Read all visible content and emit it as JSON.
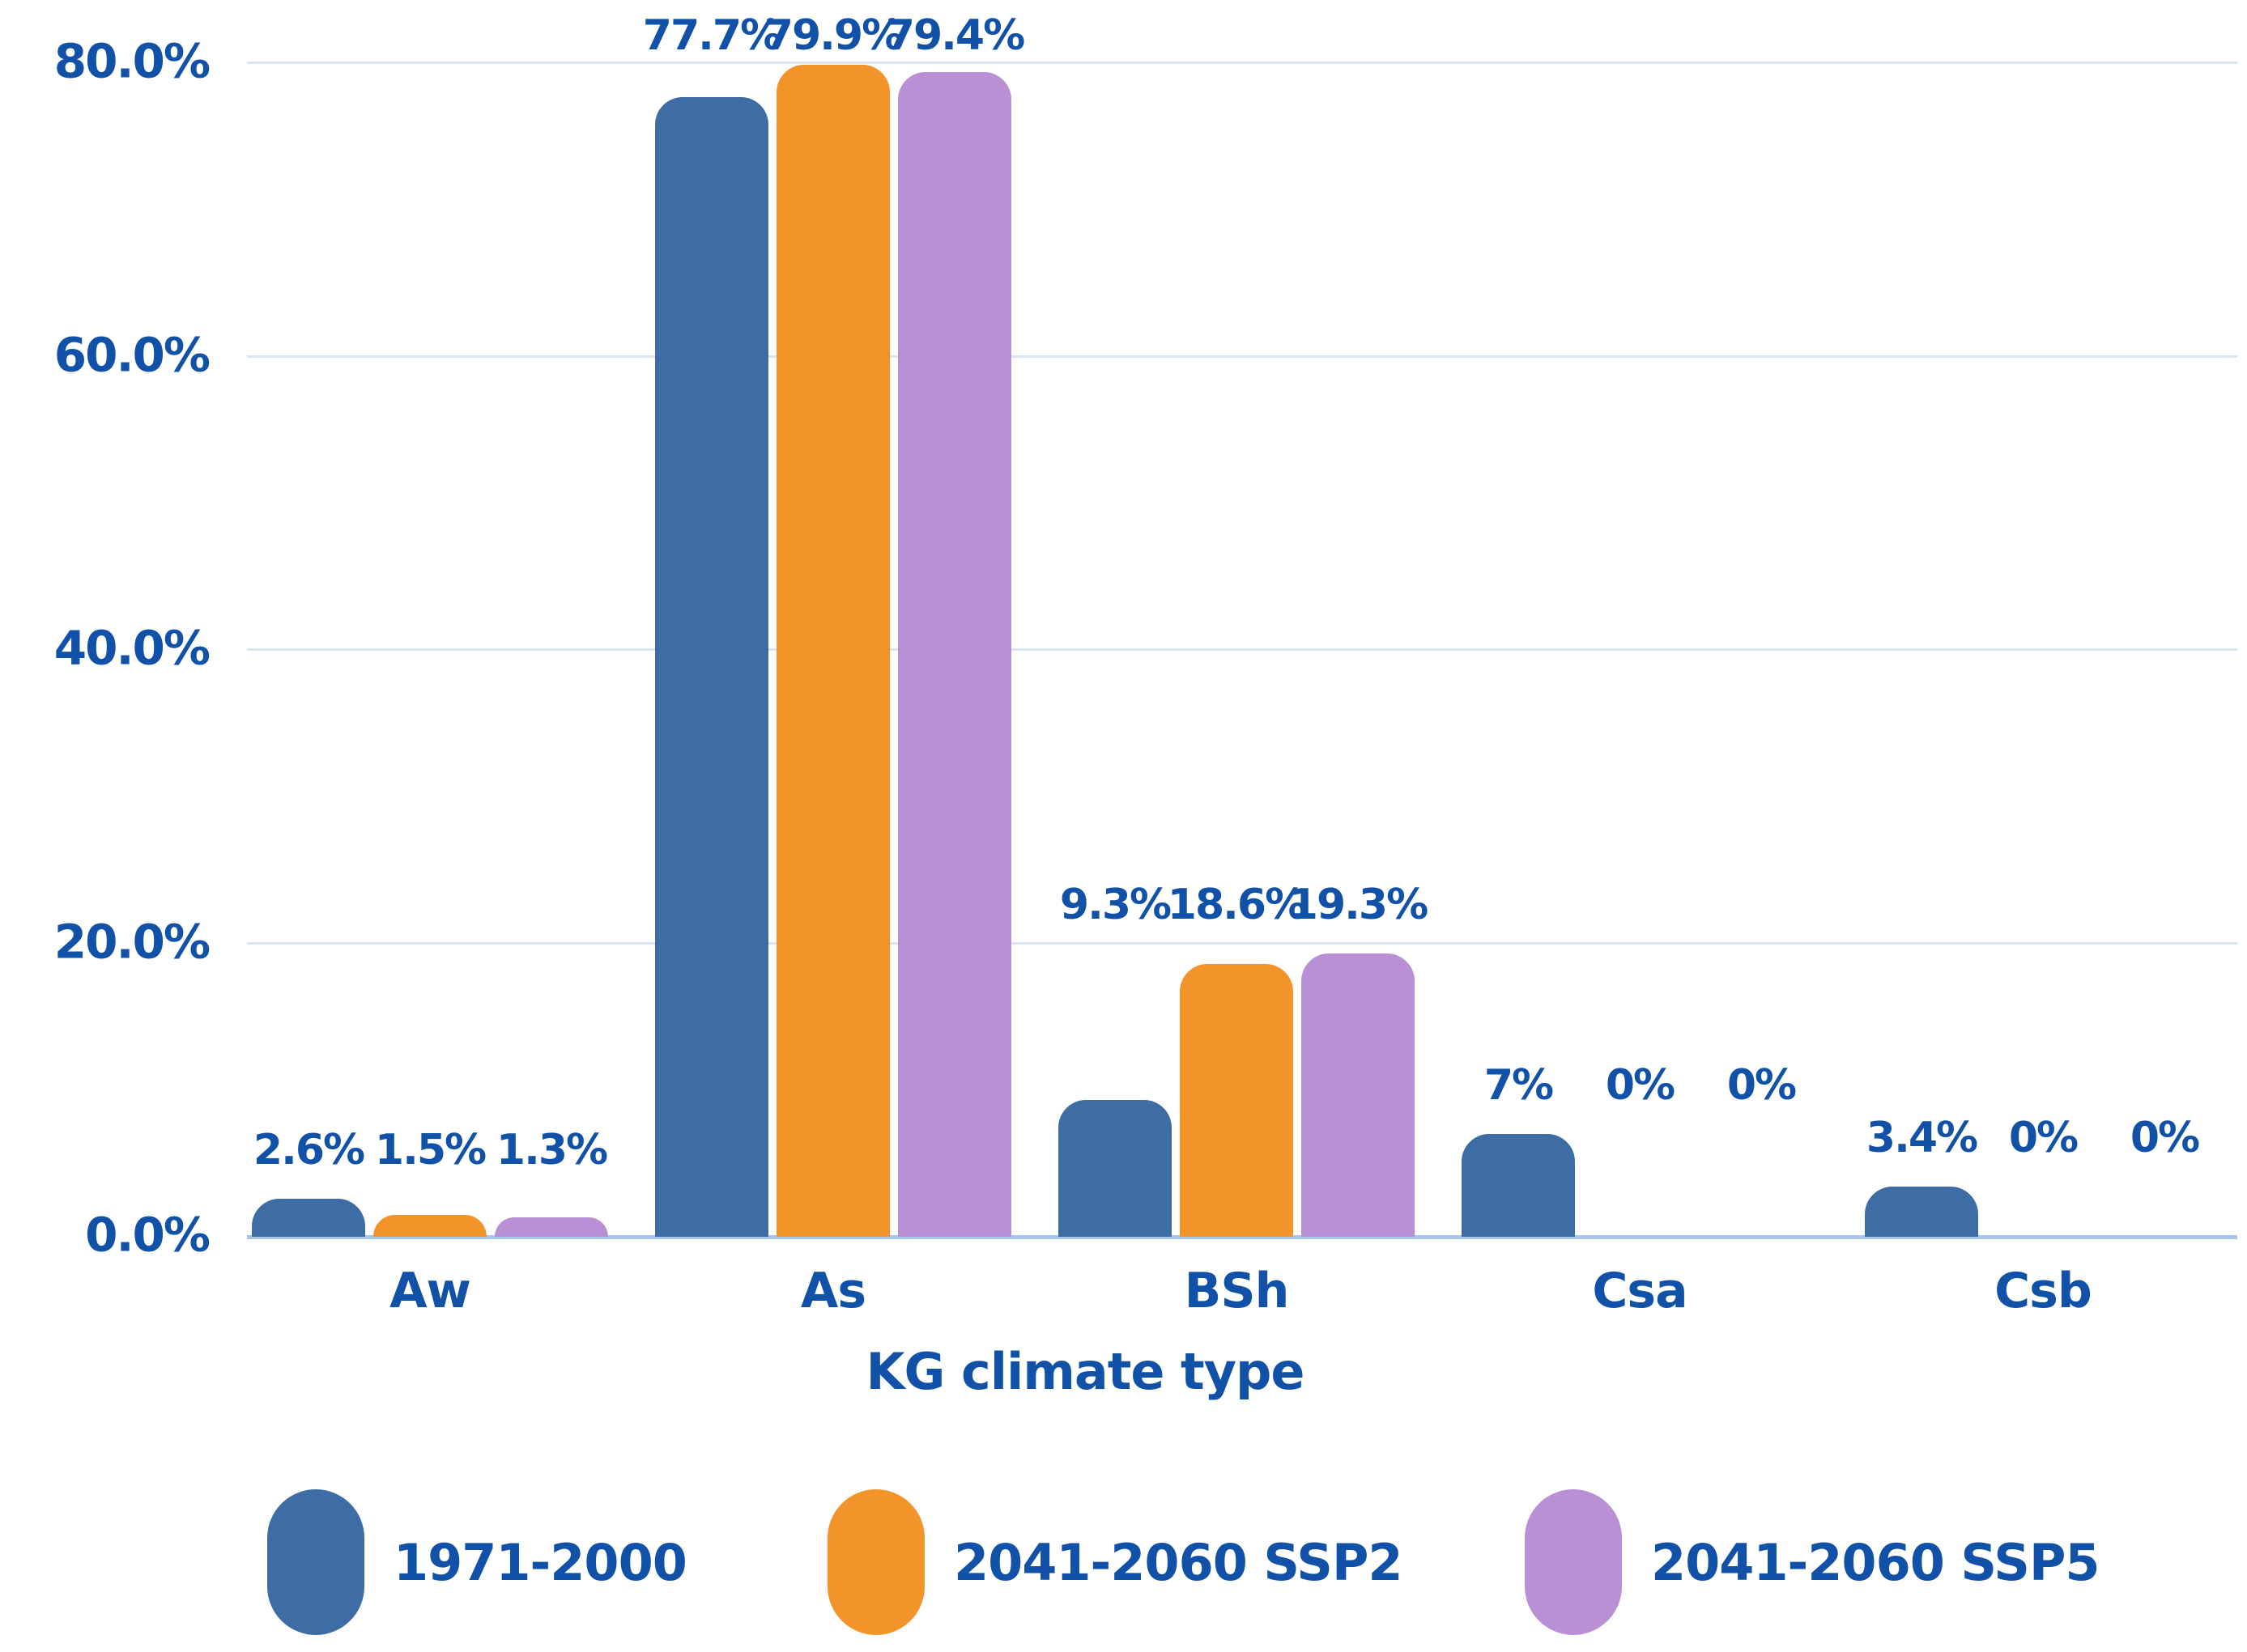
{
  "chart_data": {
    "type": "bar",
    "title": "",
    "xlabel": "KG climate type",
    "ylabel": "",
    "categories": [
      "Aw",
      "As",
      "BSh",
      "Csa",
      "Csb"
    ],
    "series": [
      {
        "name": "1971-2000",
        "color": "#3E6DA6",
        "values": [
          2.6,
          77.7,
          9.3,
          7,
          3.4
        ],
        "labels": [
          "2.6%",
          "77.7%",
          "9.3%",
          "7%",
          "3.4%"
        ]
      },
      {
        "name": "2041-2060 SSP2",
        "color": "#F2942A",
        "values": [
          1.5,
          79.9,
          18.6,
          0,
          0
        ],
        "labels": [
          "1.5%",
          "79.9%",
          "18.6%",
          "0%",
          "0%"
        ]
      },
      {
        "name": "2041-2060 SSP5",
        "color": "#B98FD5",
        "values": [
          1.3,
          79.4,
          19.3,
          0,
          0
        ],
        "labels": [
          "1.3%",
          "79.4%",
          "19.3%",
          "0%",
          "0%"
        ]
      }
    ],
    "y_axis": {
      "ticks": [
        "0.0%",
        "20.0%",
        "40.0%",
        "60.0%",
        "80.0%"
      ],
      "tick_values": [
        0,
        20,
        40,
        60,
        80
      ],
      "max": 80
    },
    "grid": true,
    "legend_position": "bottom",
    "colors": {
      "text": "#1152A8",
      "gridline": "#DAE5F4",
      "axis_line": "#A8C4E6",
      "background": "#FFFFFF"
    }
  }
}
